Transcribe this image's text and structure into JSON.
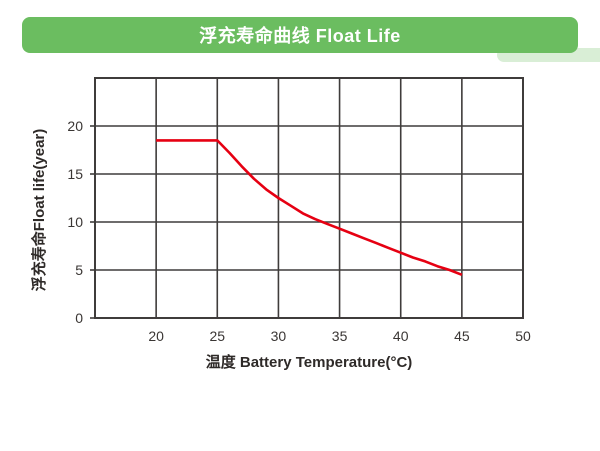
{
  "header": {
    "title": "浮充寿命曲线 Float Life",
    "banner_color": "#6bbd60",
    "swoosh_color": "#d9eed6",
    "title_color": "#ffffff"
  },
  "chart_data": {
    "type": "line",
    "title": "浮充寿命曲线 Float Life",
    "xlabel": "温度 Battery Temperature(°C)",
    "ylabel": "浮充寿命Float life(year)",
    "xlim": [
      15,
      50
    ],
    "ylim": [
      0,
      25
    ],
    "xticks": [
      20,
      25,
      30,
      35,
      40,
      45,
      50
    ],
    "yticks": [
      0,
      5,
      10,
      15,
      20
    ],
    "grid": true,
    "legend": "none",
    "frame_color": "#3f3c3b",
    "line_color": "#e60012",
    "series": [
      {
        "name": "Float life",
        "points": [
          [
            20,
            18.5
          ],
          [
            25,
            18.5
          ],
          [
            26,
            17.2
          ],
          [
            27,
            15.8
          ],
          [
            28,
            14.5
          ],
          [
            29,
            13.4
          ],
          [
            30,
            12.5
          ],
          [
            31,
            11.7
          ],
          [
            32,
            10.9
          ],
          [
            33,
            10.3
          ],
          [
            34,
            9.8
          ],
          [
            35,
            9.3
          ],
          [
            36,
            8.8
          ],
          [
            37,
            8.3
          ],
          [
            38,
            7.8
          ],
          [
            39,
            7.3
          ],
          [
            40,
            6.8
          ],
          [
            41,
            6.3
          ],
          [
            42,
            5.9
          ],
          [
            43,
            5.4
          ],
          [
            44,
            5.0
          ],
          [
            45,
            4.5
          ]
        ]
      }
    ]
  }
}
